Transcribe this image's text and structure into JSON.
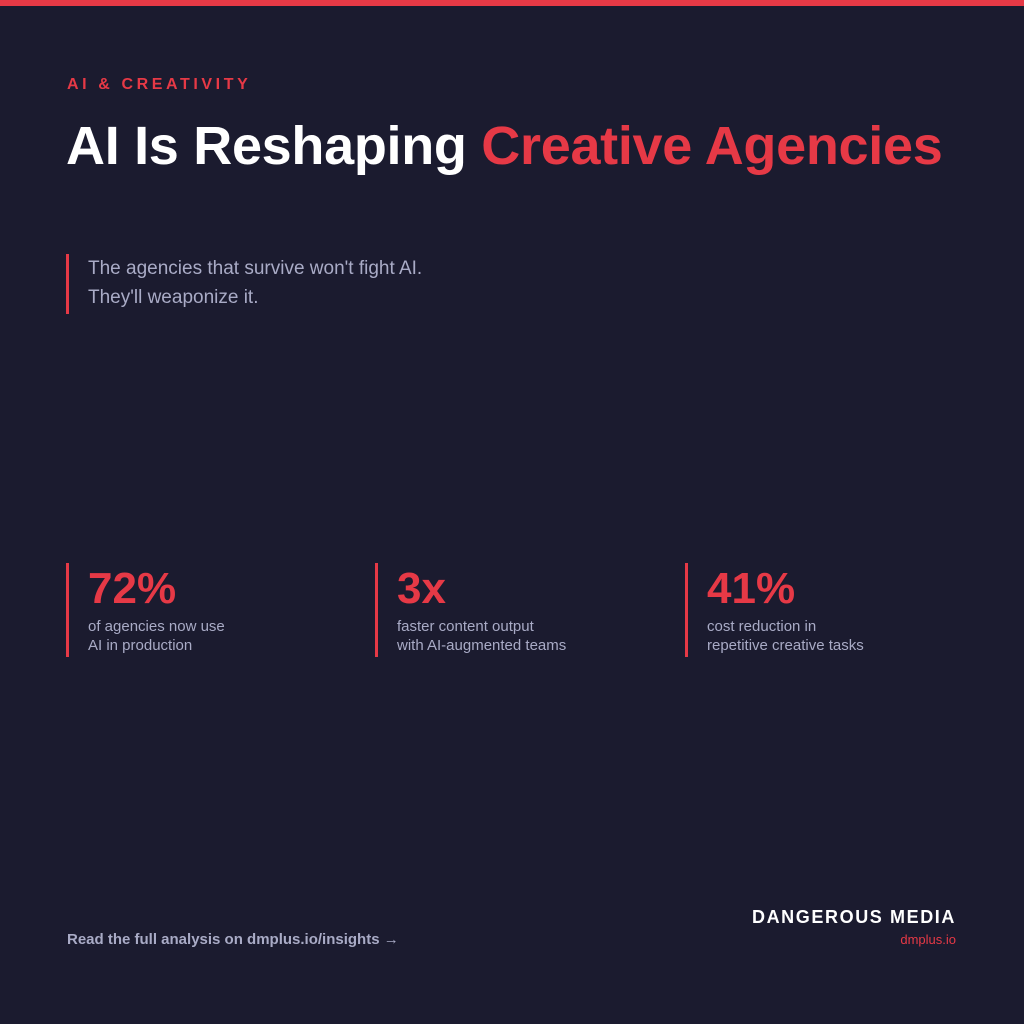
{
  "eyebrow": "AI & CREATIVITY",
  "headline": {
    "plain": "AI Is Reshaping ",
    "accent": "Creative Agencies"
  },
  "subhead": {
    "line1": "The agencies that survive won't fight AI.",
    "line2": "They'll weaponize it."
  },
  "stats": [
    {
      "value": "72%",
      "desc_line1": "of agencies now use",
      "desc_line2": "AI in production"
    },
    {
      "value": "3x",
      "desc_line1": "faster content output",
      "desc_line2": "with AI-augmented teams"
    },
    {
      "value": "41%",
      "desc_line1": "cost reduction in",
      "desc_line2": "repetitive creative tasks"
    }
  ],
  "footer": {
    "cta": "Read the full analysis on dmplus.io/insights →",
    "brand_name": "DANGEROUS MEDIA",
    "brand_url": "dmplus.io"
  },
  "colors": {
    "background": "#1b1b2f",
    "accent": "#e63946",
    "muted_text": "#a9abc6",
    "headline_text": "#ffffff"
  }
}
